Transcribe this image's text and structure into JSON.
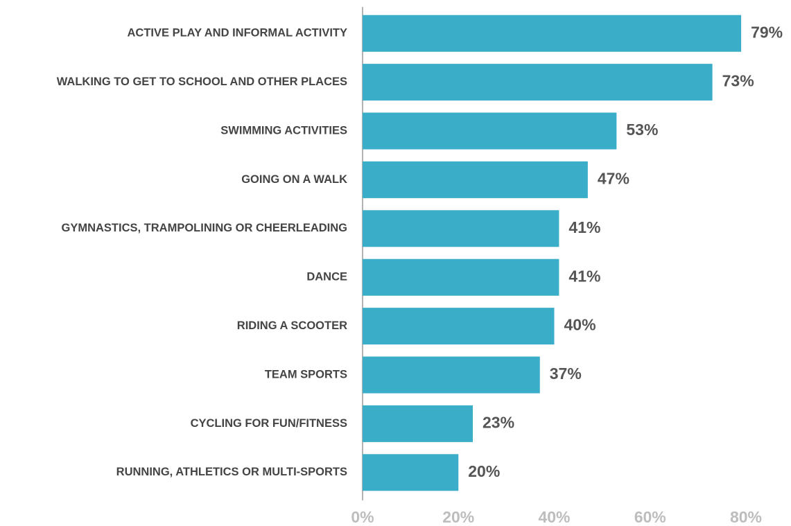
{
  "chart_data": {
    "type": "barh",
    "categories": [
      "ACTIVE PLAY AND INFORMAL ACTIVITY",
      "WALKING TO GET TO SCHOOL AND OTHER PLACES",
      "SWIMMING ACTIVITIES",
      "GOING ON A WALK",
      "GYMNASTICS, TRAMPOLINING OR CHEERLEADING",
      "DANCE",
      "RIDING A SCOOTER",
      "TEAM SPORTS",
      "CYCLING FOR FUN/FITNESS",
      "RUNNING, ATHLETICS OR MULTI-SPORTS"
    ],
    "values": [
      79,
      73,
      53,
      47,
      41,
      41,
      40,
      37,
      23,
      20
    ],
    "value_labels": [
      "79%",
      "73%",
      "53%",
      "47%",
      "41%",
      "41%",
      "40%",
      "37%",
      "23%",
      "20%"
    ],
    "color": "#3aaec8",
    "xlim": [
      0,
      80
    ],
    "xticks": [
      {
        "value": 0,
        "label": "0%"
      },
      {
        "value": 20,
        "label": "20%"
      },
      {
        "value": 40,
        "label": "40%"
      },
      {
        "value": 60,
        "label": "60%"
      },
      {
        "value": 80,
        "label": "80%"
      }
    ],
    "grid": false
  }
}
